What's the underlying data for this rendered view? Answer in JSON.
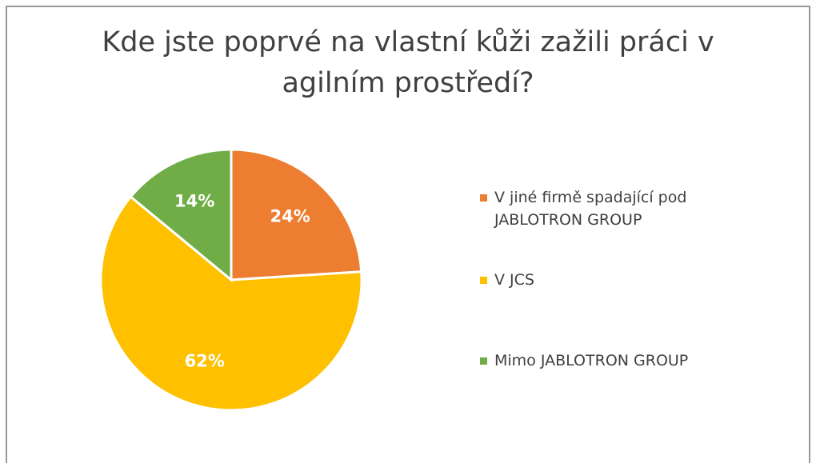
{
  "chart_data": {
    "type": "pie",
    "title": "Kde jste poprvé na vlastní kůži zažili práci v agilním prostředí?",
    "categories": [
      "V jiné firmě spadající pod JABLOTRON GROUP",
      "V JCS",
      "Mimo JABLOTRON GROUP"
    ],
    "values": [
      24,
      62,
      14
    ],
    "value_labels": [
      "24%",
      "62%",
      "14%"
    ],
    "colors": [
      "#ed7d31",
      "#ffc000",
      "#70ad47"
    ],
    "legend": "right"
  }
}
